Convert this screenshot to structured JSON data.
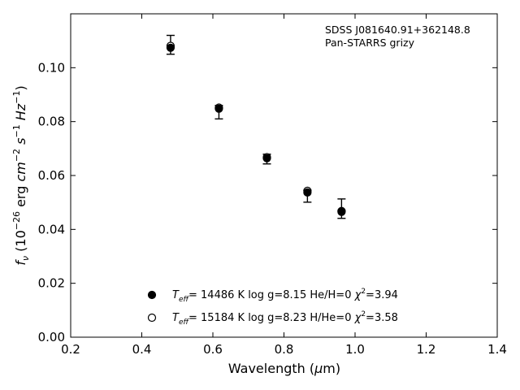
{
  "chart_data": {
    "type": "scatter",
    "xlabel_prefix": "Wavelength (",
    "xlabel_mu": "μ",
    "xlabel_suffix": "m)",
    "ylabel": "f_ν (10^−26 erg cm^−2 s^−1 Hz^−1)",
    "xlim": [
      0.2,
      1.4
    ],
    "ylim": [
      0.0,
      0.12
    ],
    "xticks": [
      "0.2",
      "0.4",
      "0.6",
      "0.8",
      "1.0",
      "1.2",
      "1.4"
    ],
    "yticks": [
      "0.00",
      "0.02",
      "0.04",
      "0.06",
      "0.08",
      "0.10"
    ],
    "annotation": [
      "SDSS J081640.91+362148.8",
      "Pan-STARRS grizy"
    ],
    "observed": {
      "x": [
        0.481,
        0.617,
        0.752,
        0.866,
        0.962
      ],
      "y": [
        0.1085,
        0.0835,
        0.0661,
        0.0523,
        0.0477
      ],
      "err": [
        0.0035,
        0.0025,
        0.0018,
        0.0022,
        0.0036
      ]
    },
    "series": [
      {
        "marker": "filled",
        "legend": {
          "teff": "= 14486 K",
          "logg": "log g=8.15",
          "comp": "He/H=0",
          "chi": "=3.94"
        },
        "x": [
          0.481,
          0.617,
          0.752,
          0.866,
          0.962
        ],
        "y": [
          0.1074,
          0.0848,
          0.0664,
          0.0537,
          0.0465
        ]
      },
      {
        "marker": "open",
        "legend": {
          "teff": "= 15184 K",
          "logg": "log g=8.23",
          "comp": "H/He=0",
          "chi": "=3.58"
        },
        "x": [
          0.481,
          0.617,
          0.752,
          0.866,
          0.962
        ],
        "y": [
          0.1081,
          0.0852,
          0.0668,
          0.0543,
          0.0468
        ]
      }
    ],
    "legend_placement": "lower-center",
    "grid": false
  }
}
